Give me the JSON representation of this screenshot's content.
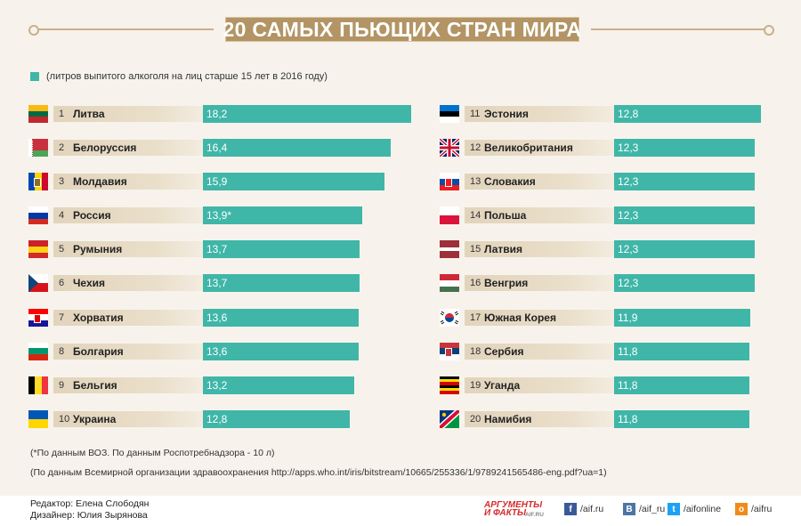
{
  "title": "20 САМЫХ ПЬЮЩИХ СТРАН МИРА",
  "chart_data": {
    "type": "bar",
    "title": "20 САМЫХ ПЬЮЩИХ СТРАН МИРА",
    "legend": "(литров выпитого алкоголя на лиц старше 15 лет в 2016 году)",
    "xlim": [
      0,
      18.2
    ],
    "series_color": "#3fb6a8",
    "rows": [
      {
        "rank": "1",
        "country": "Литва",
        "value": 18.2,
        "label": "18,2"
      },
      {
        "rank": "2",
        "country": "Белоруссия",
        "value": 16.4,
        "label": "16,4"
      },
      {
        "rank": "3",
        "country": "Молдавия",
        "value": 15.9,
        "label": "15,9"
      },
      {
        "rank": "4",
        "country": "Россия",
        "value": 13.9,
        "label": "13,9*"
      },
      {
        "rank": "5",
        "country": "Румыния",
        "value": 13.7,
        "label": "13,7"
      },
      {
        "rank": "6",
        "country": "Чехия",
        "value": 13.7,
        "label": "13,7"
      },
      {
        "rank": "7",
        "country": "Хорватия",
        "value": 13.6,
        "label": "13,6"
      },
      {
        "rank": "8",
        "country": "Болгария",
        "value": 13.6,
        "label": "13,6"
      },
      {
        "rank": "9",
        "country": "Бельгия",
        "value": 13.2,
        "label": "13,2"
      },
      {
        "rank": "10",
        "country": "Украина",
        "value": 12.8,
        "label": "12,8"
      },
      {
        "rank": "11",
        "country": "Эстония",
        "value": 12.8,
        "label": "12,8"
      },
      {
        "rank": "12",
        "country": "Великобритания",
        "value": 12.3,
        "label": "12,3"
      },
      {
        "rank": "13",
        "country": "Словакия",
        "value": 12.3,
        "label": "12,3"
      },
      {
        "rank": "14",
        "country": "Польша",
        "value": 12.3,
        "label": "12,3"
      },
      {
        "rank": "15",
        "country": "Латвия",
        "value": 12.3,
        "label": "12,3"
      },
      {
        "rank": "16",
        "country": "Венгрия",
        "value": 12.3,
        "label": "12,3"
      },
      {
        "rank": "17",
        "country": "Южная Корея",
        "value": 11.9,
        "label": "11,9"
      },
      {
        "rank": "18",
        "country": "Сербия",
        "value": 11.8,
        "label": "11,8"
      },
      {
        "rank": "19",
        "country": "Уганда",
        "value": 11.8,
        "label": "11,8"
      },
      {
        "rank": "20",
        "country": "Намибия",
        "value": 11.8,
        "label": "11,8"
      }
    ]
  },
  "notes": {
    "footnote": "(*По данным ВОЗ. По данным Роспотребнадзора - 10 л)",
    "source": "(По данным Всемирной организации здравоохранения http://apps.who.int/iris/bitstream/10665/255336/1/9789241565486-eng.pdf?ua=1)"
  },
  "footer": {
    "editor": "Редактор: Елена Слободян",
    "designer": "Дизайнер: Юлия Зырянова",
    "logo_line1": "АРГУМЕНТЫ",
    "logo_line2": "И ФАКТЫ",
    "logo_site": "AIF.RU",
    "social": [
      {
        "icon": "facebook-icon",
        "glyph": "f",
        "color": "#3b5998",
        "label": "/aif.ru"
      },
      {
        "icon": "vk-icon",
        "glyph": "В",
        "color": "#4c75a3",
        "label": "/aif_ru"
      },
      {
        "icon": "twitter-icon",
        "glyph": "t",
        "color": "#1da1f2",
        "label": "/aifonline"
      },
      {
        "icon": "odnoklassniki-icon",
        "glyph": "о",
        "color": "#f28a1a",
        "label": "/aifru"
      }
    ]
  }
}
